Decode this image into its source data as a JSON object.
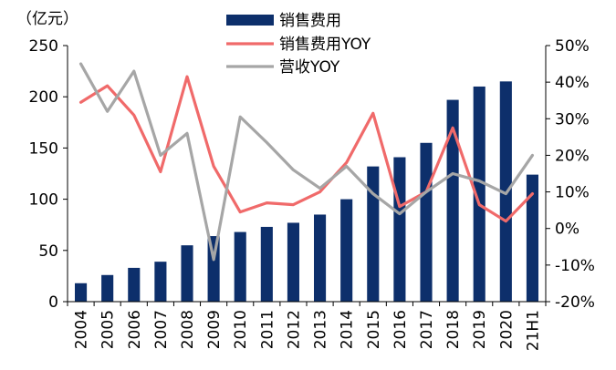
{
  "chart_data": {
    "type": "bar+line",
    "unit_label": "（亿元）",
    "categories": [
      "2004",
      "2005",
      "2006",
      "2007",
      "2008",
      "2009",
      "2010",
      "2011",
      "2012",
      "2013",
      "2014",
      "2015",
      "2016",
      "2017",
      "2018",
      "2019",
      "2020",
      "21H1"
    ],
    "left_axis": {
      "min": 0,
      "max": 250,
      "ticks": [
        "0",
        "50",
        "100",
        "150",
        "200",
        "250"
      ]
    },
    "right_axis": {
      "min": -20,
      "max": 50,
      "ticks": [
        "-20%",
        "-10%",
        "0%",
        "10%",
        "20%",
        "30%",
        "40%",
        "50%"
      ]
    },
    "series": [
      {
        "name": "销售费用",
        "type": "bar",
        "axis": "left",
        "color": "#0d2f6b",
        "values": [
          18,
          26,
          33,
          39,
          55,
          64,
          68,
          73,
          77,
          85,
          100,
          132,
          141,
          155,
          197,
          210,
          215,
          124
        ]
      },
      {
        "name": "销售费用YOY",
        "type": "line",
        "axis": "right",
        "color": "#f06a6a",
        "values": [
          34.5,
          39,
          31,
          15.5,
          41.5,
          17,
          4.5,
          7,
          6.5,
          10,
          18,
          31.5,
          6,
          10,
          27.5,
          6.5,
          2,
          9.5
        ]
      },
      {
        "name": "营收YOY",
        "type": "line",
        "axis": "right",
        "color": "#a6a6a6",
        "values": [
          45,
          32,
          43,
          20,
          26,
          -8.5,
          30.5,
          23.5,
          16,
          11,
          17,
          9.5,
          4,
          10,
          15,
          13,
          9.5,
          20
        ]
      }
    ],
    "legend_position": "top-center",
    "grid": false
  }
}
